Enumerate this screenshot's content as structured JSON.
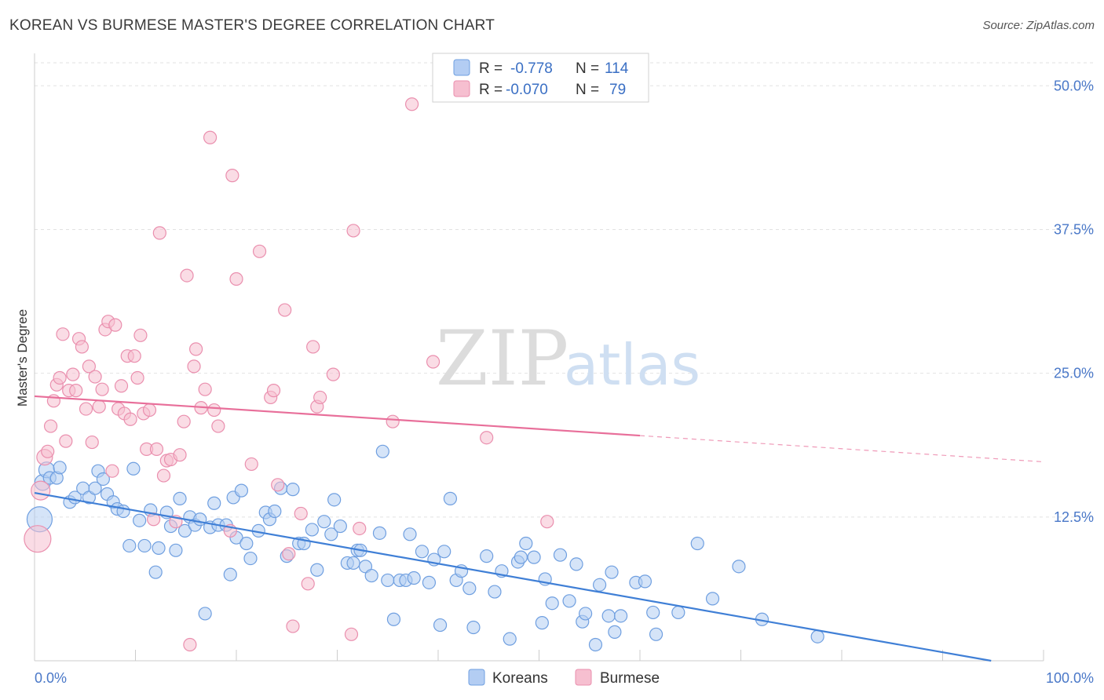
{
  "title": "KOREAN VS BURMESE MASTER'S DEGREE CORRELATION CHART",
  "source": "Source: ZipAtlas.com",
  "watermark": {
    "zip": "ZIP",
    "atlas": "atlas"
  },
  "legend": {
    "rows": [
      {
        "r_label": "R =",
        "r_value": "-0.778",
        "n_label": "N =",
        "n_value": "114",
        "color": "#b3cdf3"
      },
      {
        "r_label": "R =",
        "r_value": "-0.070",
        "n_label": "N =",
        "n_value": "79",
        "color": "#f6bfd0"
      }
    ]
  },
  "bottom_legend": [
    {
      "label": "Koreans",
      "color": "#b3cdf3"
    },
    {
      "label": "Burmese",
      "color": "#f6bfd0"
    }
  ],
  "chart_data": {
    "type": "scatter",
    "title": "KOREAN VS BURMESE MASTER'S DEGREE CORRELATION CHART",
    "xlabel": "",
    "ylabel": "Master's Degree",
    "xlim": [
      0,
      100
    ],
    "ylim": [
      0,
      52
    ],
    "x_tick_labels": [
      "0.0%",
      "100.0%"
    ],
    "y_ticks": [
      12.5,
      25.0,
      37.5,
      50.0
    ],
    "y_tick_labels": [
      "12.5%",
      "25.0%",
      "37.5%",
      "50.0%"
    ],
    "grid": "horizontal dashed",
    "legend_position": "top-center",
    "series": [
      {
        "name": "Koreans",
        "color": "#6f9fe0",
        "fill": "#b3cdf3",
        "trend": {
          "x0": 0,
          "y0": 14.6,
          "x1": 100,
          "y1": -0.8,
          "solid_until": 100
        },
        "points": [
          [
            0.5,
            12.3
          ],
          [
            0.8,
            15.5
          ],
          [
            1.2,
            16.6
          ],
          [
            1.5,
            15.9
          ],
          [
            2.2,
            15.9
          ],
          [
            2.5,
            16.8
          ],
          [
            3.5,
            13.8
          ],
          [
            4,
            14.2
          ],
          [
            4.8,
            15.0
          ],
          [
            5.4,
            14.2
          ],
          [
            6,
            15.0
          ],
          [
            6.3,
            16.5
          ],
          [
            6.8,
            15.8
          ],
          [
            7.2,
            14.5
          ],
          [
            7.8,
            13.8
          ],
          [
            8.2,
            13.2
          ],
          [
            8.8,
            13.0
          ],
          [
            9.4,
            10.0
          ],
          [
            9.8,
            16.7
          ],
          [
            10.4,
            12.2
          ],
          [
            10.9,
            10.0
          ],
          [
            11.5,
            13.1
          ],
          [
            12,
            7.7
          ],
          [
            12.3,
            9.8
          ],
          [
            13.1,
            12.9
          ],
          [
            13.5,
            11.7
          ],
          [
            14,
            9.6
          ],
          [
            14.4,
            14.1
          ],
          [
            14.9,
            11.3
          ],
          [
            15.4,
            12.5
          ],
          [
            15.9,
            11.8
          ],
          [
            16.4,
            12.3
          ],
          [
            16.9,
            4.1
          ],
          [
            17.4,
            11.6
          ],
          [
            17.8,
            13.7
          ],
          [
            18.2,
            11.8
          ],
          [
            19,
            11.8
          ],
          [
            19.4,
            7.5
          ],
          [
            19.7,
            14.2
          ],
          [
            20,
            10.7
          ],
          [
            20.5,
            14.8
          ],
          [
            21,
            10.2
          ],
          [
            21.4,
            8.9
          ],
          [
            22.2,
            11.3
          ],
          [
            22.9,
            12.9
          ],
          [
            23.3,
            12.3
          ],
          [
            23.8,
            13.0
          ],
          [
            24.4,
            15.0
          ],
          [
            25,
            9.1
          ],
          [
            25.6,
            14.9
          ],
          [
            26.2,
            10.2
          ],
          [
            26.7,
            10.2
          ],
          [
            27.5,
            11.4
          ],
          [
            28,
            7.9
          ],
          [
            28.7,
            12.1
          ],
          [
            29.4,
            11.0
          ],
          [
            29.7,
            14.0
          ],
          [
            30.3,
            11.7
          ],
          [
            31,
            8.5
          ],
          [
            31.6,
            8.5
          ],
          [
            32,
            9.6
          ],
          [
            32.3,
            9.6
          ],
          [
            32.8,
            8.2
          ],
          [
            33.4,
            7.4
          ],
          [
            34.2,
            11.1
          ],
          [
            35,
            7.0
          ],
          [
            35.6,
            3.6
          ],
          [
            36.2,
            7.0
          ],
          [
            36.8,
            7.0
          ],
          [
            37.2,
            11.0
          ],
          [
            37.6,
            7.2
          ],
          [
            38.4,
            9.5
          ],
          [
            39.1,
            6.8
          ],
          [
            39.6,
            8.8
          ],
          [
            40.2,
            3.1
          ],
          [
            40.6,
            9.5
          ],
          [
            41.2,
            14.1
          ],
          [
            41.8,
            7.0
          ],
          [
            42.3,
            7.8
          ],
          [
            43.1,
            6.3
          ],
          [
            43.5,
            2.9
          ],
          [
            44.8,
            9.1
          ],
          [
            45.6,
            6.0
          ],
          [
            46.3,
            7.8
          ],
          [
            47.1,
            1.9
          ],
          [
            47.9,
            8.6
          ],
          [
            48.2,
            9.0
          ],
          [
            48.7,
            10.2
          ],
          [
            49.5,
            9.0
          ],
          [
            50.3,
            3.3
          ],
          [
            50.6,
            7.1
          ],
          [
            51.3,
            5.0
          ],
          [
            52.1,
            9.2
          ],
          [
            53,
            5.2
          ],
          [
            53.7,
            8.4
          ],
          [
            54.3,
            3.4
          ],
          [
            54.6,
            4.1
          ],
          [
            55.6,
            1.4
          ],
          [
            56,
            6.6
          ],
          [
            56.9,
            3.9
          ],
          [
            57.2,
            7.7
          ],
          [
            57.5,
            2.5
          ],
          [
            58.1,
            3.9
          ],
          [
            59.6,
            6.8
          ],
          [
            60.5,
            6.9
          ],
          [
            61.3,
            4.2
          ],
          [
            61.6,
            2.3
          ],
          [
            63.8,
            4.2
          ],
          [
            65.7,
            10.2
          ],
          [
            67.2,
            5.4
          ],
          [
            69.8,
            8.2
          ],
          [
            72.1,
            3.6
          ],
          [
            77.6,
            2.1
          ],
          [
            34.5,
            18.2
          ]
        ]
      },
      {
        "name": "Burmese",
        "color": "#ea8fae",
        "fill": "#f6bfd0",
        "trend": {
          "x0": 0,
          "y0": 23.0,
          "x1": 100,
          "y1": 17.3,
          "solid_until": 60
        },
        "points": [
          [
            0.3,
            10.6
          ],
          [
            0.6,
            14.8
          ],
          [
            1,
            17.7
          ],
          [
            1.3,
            18.2
          ],
          [
            1.6,
            20.4
          ],
          [
            1.9,
            22.6
          ],
          [
            2.2,
            24.0
          ],
          [
            2.5,
            24.6
          ],
          [
            2.8,
            28.4
          ],
          [
            3.1,
            19.1
          ],
          [
            3.4,
            23.5
          ],
          [
            3.8,
            24.9
          ],
          [
            4.1,
            23.5
          ],
          [
            4.4,
            28.0
          ],
          [
            4.7,
            27.3
          ],
          [
            5.1,
            21.9
          ],
          [
            5.4,
            25.6
          ],
          [
            5.7,
            19.0
          ],
          [
            6.0,
            24.7
          ],
          [
            6.4,
            22.1
          ],
          [
            6.7,
            23.6
          ],
          [
            7.0,
            28.8
          ],
          [
            7.3,
            29.5
          ],
          [
            7.7,
            16.5
          ],
          [
            8.0,
            29.2
          ],
          [
            8.3,
            21.9
          ],
          [
            8.6,
            23.9
          ],
          [
            8.9,
            21.5
          ],
          [
            9.2,
            26.5
          ],
          [
            9.5,
            21.0
          ],
          [
            9.9,
            26.5
          ],
          [
            10.2,
            24.6
          ],
          [
            10.5,
            28.3
          ],
          [
            10.8,
            21.5
          ],
          [
            11.1,
            18.4
          ],
          [
            11.4,
            21.8
          ],
          [
            11.8,
            12.3
          ],
          [
            12.1,
            18.4
          ],
          [
            12.4,
            37.2
          ],
          [
            12.8,
            16.1
          ],
          [
            13.1,
            17.4
          ],
          [
            13.5,
            17.5
          ],
          [
            14.0,
            12.1
          ],
          [
            14.4,
            17.9
          ],
          [
            14.8,
            20.8
          ],
          [
            15.1,
            33.5
          ],
          [
            15.4,
            1.4
          ],
          [
            15.8,
            25.6
          ],
          [
            16.0,
            27.1
          ],
          [
            16.5,
            22.0
          ],
          [
            16.9,
            23.6
          ],
          [
            17.4,
            45.5
          ],
          [
            17.8,
            21.8
          ],
          [
            18.2,
            20.4
          ],
          [
            19.4,
            11.3
          ],
          [
            20.0,
            33.2
          ],
          [
            21.5,
            17.1
          ],
          [
            22.3,
            35.6
          ],
          [
            23.4,
            22.9
          ],
          [
            23.7,
            23.5
          ],
          [
            24.1,
            15.3
          ],
          [
            24.8,
            30.5
          ],
          [
            25.2,
            9.3
          ],
          [
            25.6,
            3.0
          ],
          [
            26.4,
            12.8
          ],
          [
            27.1,
            6.7
          ],
          [
            27.6,
            27.3
          ],
          [
            28.0,
            22.1
          ],
          [
            28.3,
            22.9
          ],
          [
            29.6,
            24.9
          ],
          [
            31.4,
            2.3
          ],
          [
            31.6,
            37.4
          ],
          [
            32.2,
            11.5
          ],
          [
            35.5,
            20.8
          ],
          [
            37.4,
            48.4
          ],
          [
            44.8,
            19.4
          ],
          [
            50.8,
            12.1
          ],
          [
            19.6,
            42.2
          ],
          [
            39.5,
            26.0
          ]
        ]
      }
    ]
  }
}
